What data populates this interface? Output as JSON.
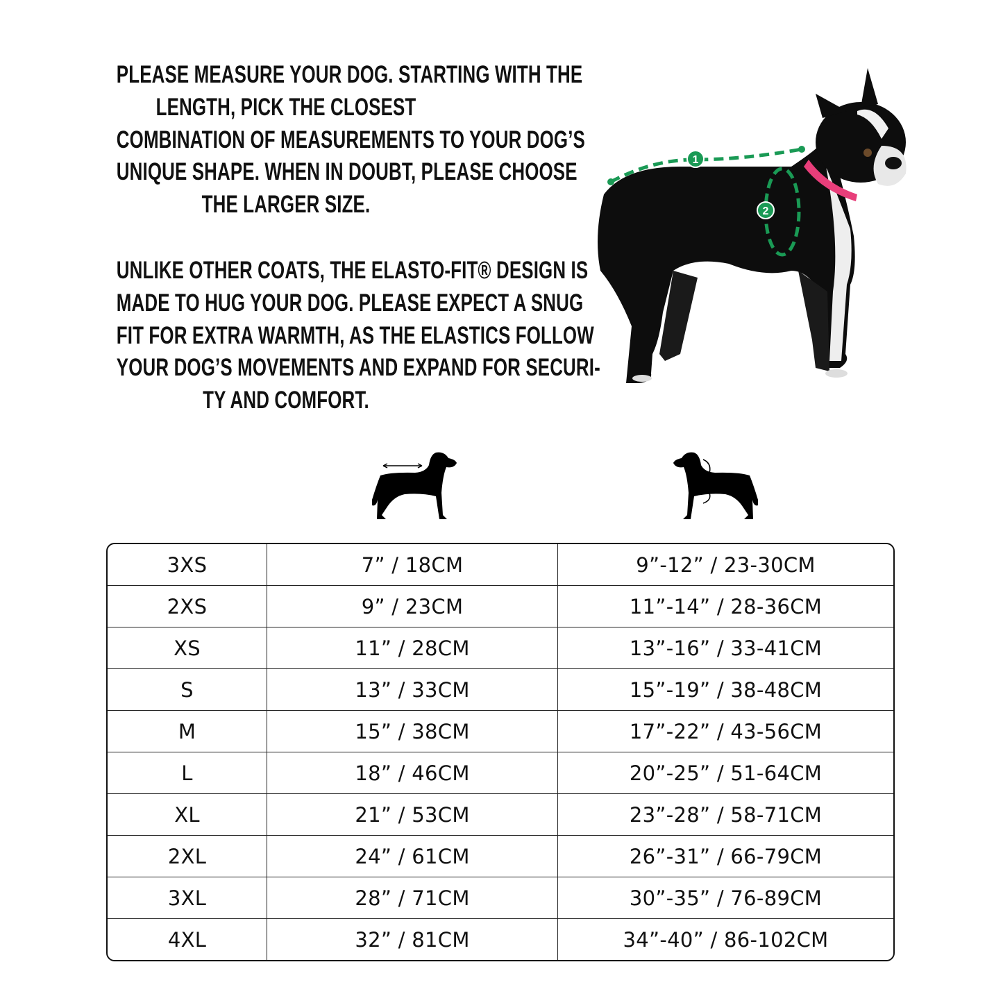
{
  "intro": {
    "paragraph1": [
      "PLEASE MEASURE YOUR DOG. STARTING WITH THE",
      "LENGTH, PICK THE CLOSEST",
      "COMBINATION OF MEASUREMENTS TO YOUR DOG’S",
      "UNIQUE SHAPE. WHEN IN DOUBT, PLEASE CHOOSE",
      "THE LARGER SIZE."
    ],
    "paragraph2": [
      "UNLIKE OTHER COATS, THE ELASTO-FIT® DESIGN IS",
      "MADE TO HUG YOUR DOG. PLEASE EXPECT A SNUG",
      "FIT FOR EXTRA WARMTH, AS THE ELASTICS FOLLOW",
      "YOUR DOG’S MOVEMENTS AND EXPAND FOR SECURI-",
      "TY AND COMFORT."
    ]
  },
  "photo": {
    "markers": [
      "1",
      "2"
    ],
    "marker_color": "#1a9a55",
    "collar_color": "#e83e7a"
  },
  "icons": {
    "length": "dog-length-icon",
    "chest": "dog-chest-girth-icon"
  },
  "size_table": {
    "rows": [
      [
        "3XS",
        "7” / 18CM",
        "9”-12” / 23-30CM"
      ],
      [
        "2XS",
        "9” / 23CM",
        "11”-14” / 28-36CM"
      ],
      [
        "XS",
        "11” / 28CM",
        "13”-16” / 33-41CM"
      ],
      [
        "S",
        "13” / 33CM",
        "15”-19” / 38-48CM"
      ],
      [
        "M",
        "15” / 38CM",
        "17”-22” / 43-56CM"
      ],
      [
        "L",
        "18” / 46CM",
        "20”-25” / 51-64CM"
      ],
      [
        "XL",
        "21” / 53CM",
        "23”-28” / 58-71CM"
      ],
      [
        "2XL",
        "24” / 61CM",
        "26”-31” / 66-79CM"
      ],
      [
        "3XL",
        "28” / 71CM",
        "30”-35” / 76-89CM"
      ],
      [
        "4XL",
        "32” / 81CM",
        "34”-40” / 86-102CM"
      ]
    ]
  }
}
